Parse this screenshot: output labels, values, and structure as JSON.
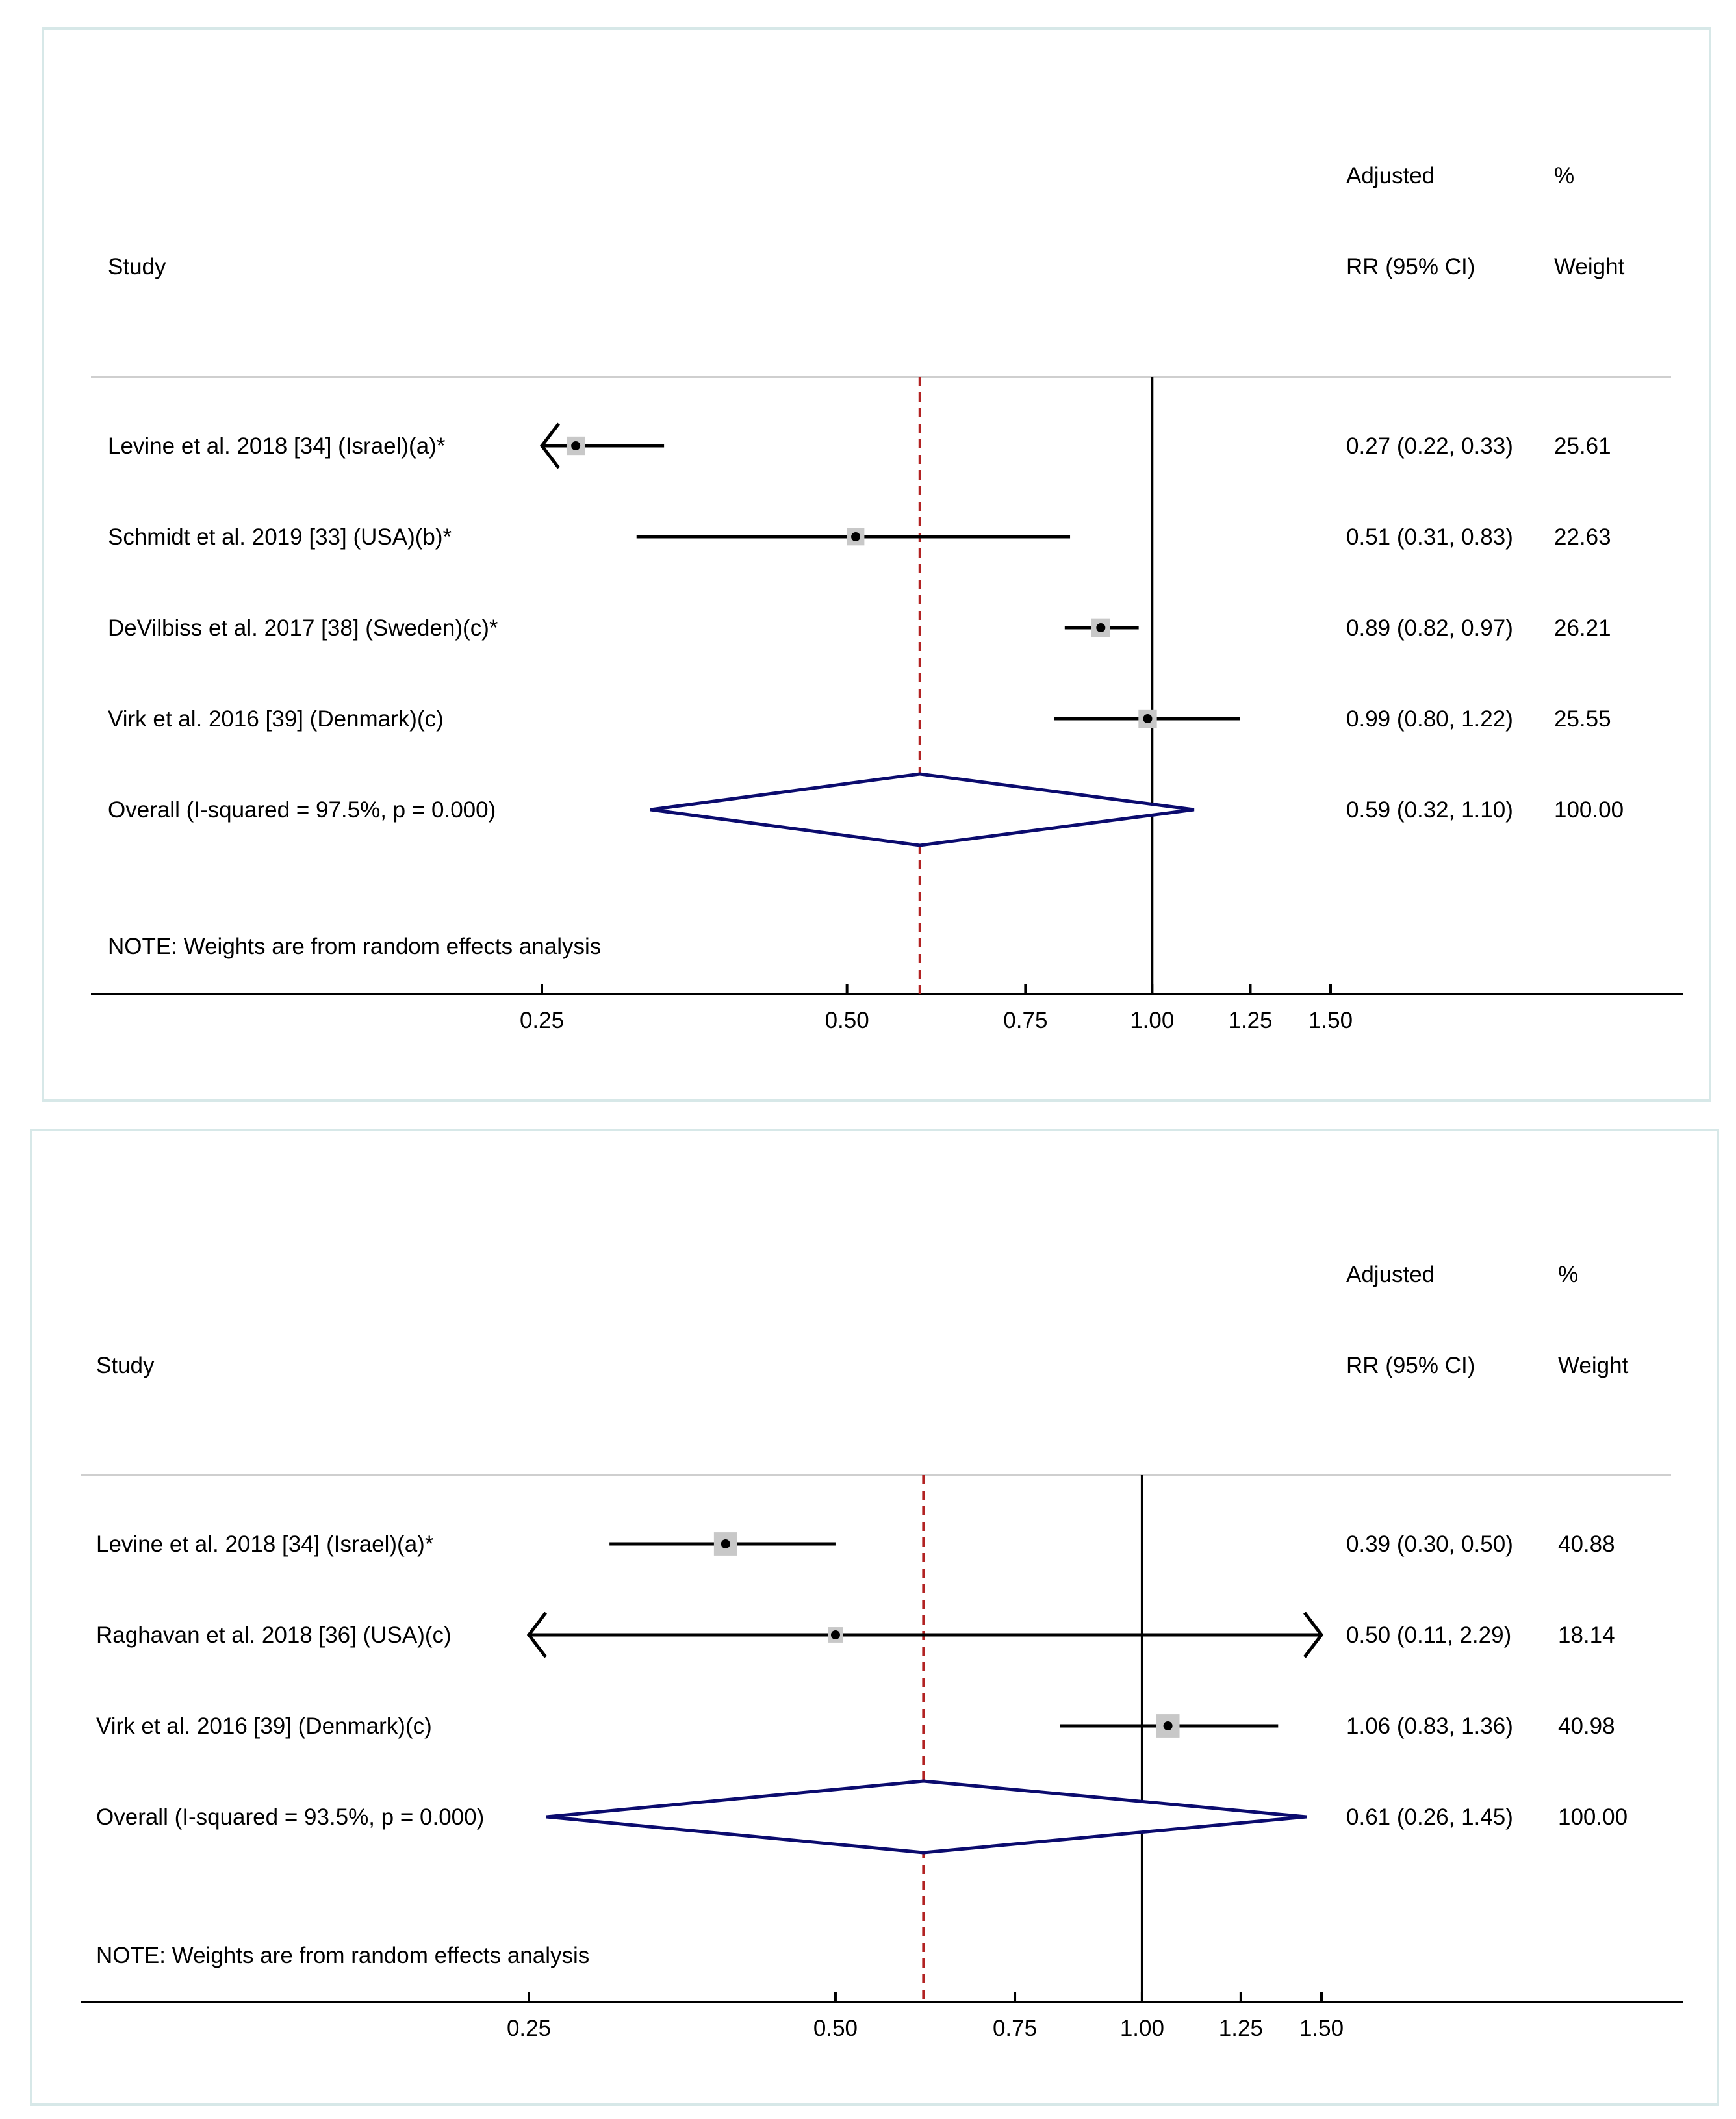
{
  "chart_data": [
    {
      "type": "forest",
      "header": {
        "study": "Study",
        "estimate_line1": "Adjusted",
        "estimate_line2": "RR (95% CI)",
        "weight_line1": "%",
        "weight_line2": "Weight"
      },
      "xlim": [
        0.25,
        1.5
      ],
      "ticks": [
        0.25,
        0.5,
        0.75,
        1.0,
        1.25,
        1.5
      ],
      "tick_labels": [
        "0.25",
        "0.50",
        "0.75",
        "1.00",
        "1.25",
        "1.50"
      ],
      "null_value": 1.0,
      "studies": [
        {
          "label": "Levine et al. 2018 [34] (Israel)(a)*",
          "rr": 0.27,
          "lo": 0.22,
          "hi": 0.33,
          "ci_text": "0.27 (0.22, 0.33)",
          "weight": 25.61,
          "weight_text": "25.61"
        },
        {
          "label": "Schmidt et al. 2019 [33] (USA)(b)*",
          "rr": 0.51,
          "lo": 0.31,
          "hi": 0.83,
          "ci_text": "0.51 (0.31, 0.83)",
          "weight": 22.63,
          "weight_text": "22.63"
        },
        {
          "label": "DeVilbiss et al. 2017 [38] (Sweden)(c)*",
          "rr": 0.89,
          "lo": 0.82,
          "hi": 0.97,
          "ci_text": "0.89 (0.82, 0.97)",
          "weight": 26.21,
          "weight_text": "26.21"
        },
        {
          "label": "Virk et al. 2016 [39] (Denmark)(c)",
          "rr": 0.99,
          "lo": 0.8,
          "hi": 1.22,
          "ci_text": "0.99 (0.80, 1.22)",
          "weight": 25.55,
          "weight_text": "25.55"
        }
      ],
      "overall": {
        "label": "Overall  (I-squared = 97.5%, p = 0.000)",
        "rr": 0.59,
        "lo": 0.32,
        "hi": 1.1,
        "ci_text": "0.59 (0.32, 1.10)",
        "weight_text": "100.00"
      },
      "note": "NOTE: Weights are from random effects analysis"
    },
    {
      "type": "forest",
      "header": {
        "study": "Study",
        "estimate_line1": "Adjusted",
        "estimate_line2": "RR (95% CI)",
        "weight_line1": "%",
        "weight_line2": "Weight"
      },
      "xlim": [
        0.25,
        1.5
      ],
      "ticks": [
        0.25,
        0.5,
        0.75,
        1.0,
        1.25,
        1.5
      ],
      "tick_labels": [
        "0.25",
        "0.50",
        "0.75",
        "1.00",
        "1.25",
        "1.50"
      ],
      "null_value": 1.0,
      "studies": [
        {
          "label": "Levine et al. 2018 [34] (Israel)(a)*",
          "rr": 0.39,
          "lo": 0.3,
          "hi": 0.5,
          "ci_text": "0.39 (0.30, 0.50)",
          "weight": 40.88,
          "weight_text": "40.88"
        },
        {
          "label": "Raghavan et al. 2018 [36] (USA)(c)",
          "rr": 0.5,
          "lo": 0.11,
          "hi": 2.29,
          "ci_text": "0.50 (0.11, 2.29)",
          "weight": 18.14,
          "weight_text": "18.14"
        },
        {
          "label": "Virk et al. 2016 [39] (Denmark)(c)",
          "rr": 1.06,
          "lo": 0.83,
          "hi": 1.36,
          "ci_text": "1.06 (0.83, 1.36)",
          "weight": 40.98,
          "weight_text": "40.98"
        }
      ],
      "overall": {
        "label": "Overall  (I-squared = 93.5%, p = 0.000)",
        "rr": 0.61,
        "lo": 0.26,
        "hi": 1.45,
        "ci_text": "0.61 (0.26, 1.45)",
        "weight_text": "100.00"
      },
      "note": "NOTE: Weights are from random effects analysis"
    }
  ]
}
